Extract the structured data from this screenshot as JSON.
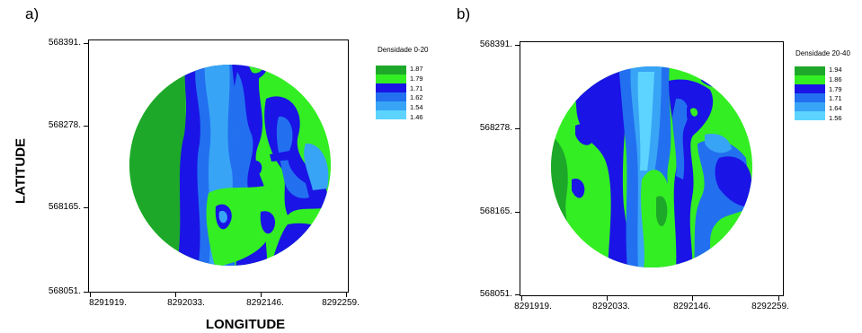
{
  "panels": [
    {
      "label": "a)",
      "legend_title": "Densidade 0-20",
      "legend_values": [
        "1.87",
        "1.79",
        "1.71",
        "1.62",
        "1.54",
        "1.46"
      ],
      "y_ticks": [
        "568391.",
        "568278.",
        "568165.",
        "568051."
      ],
      "x_ticks": [
        "8291919.",
        "8292033.",
        "8292146.",
        "8292259."
      ]
    },
    {
      "label": "b)",
      "legend_title": "Densidade 20-40",
      "legend_values": [
        "1.94",
        "1.86",
        "1.79",
        "1.71",
        "1.64",
        "1.56"
      ],
      "y_ticks": [
        "568391.",
        "568278.",
        "568165.",
        "568051."
      ],
      "x_ticks": [
        "8291919.",
        "8292033.",
        "8292146.",
        "8292259."
      ]
    }
  ],
  "axis_titles": {
    "y": "LATITUDE",
    "x": "LONGITUDE"
  },
  "colors": {
    "class1": "#1ea82a",
    "class2": "#33ee22",
    "class3": "#1a14e6",
    "class4": "#2270f0",
    "class5": "#38a4f6",
    "class6": "#5cd4ff"
  },
  "chart_data": [
    {
      "type": "heatmap",
      "title": "Densidade 0-20",
      "xlabel": "LONGITUDE",
      "ylabel": "LATITUDE",
      "xlim": [
        8291919,
        8292259
      ],
      "ylim": [
        568051,
        568391
      ],
      "levels": [
        1.87,
        1.79,
        1.71,
        1.62,
        1.54,
        1.46
      ]
    },
    {
      "type": "heatmap",
      "title": "Densidade 20-40",
      "xlabel": "",
      "ylabel": "",
      "xlim": [
        8291919,
        8292259
      ],
      "ylim": [
        568051,
        568391
      ],
      "levels": [
        1.94,
        1.86,
        1.79,
        1.71,
        1.64,
        1.56
      ]
    }
  ]
}
